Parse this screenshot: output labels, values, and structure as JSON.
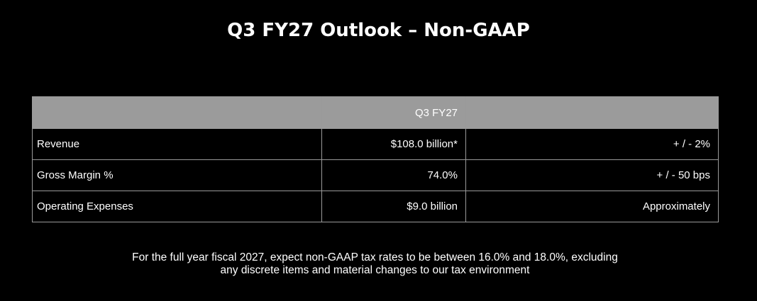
{
  "title": "Q3 FY27 Outlook – Non-GAAP",
  "table": {
    "header": [
      "",
      "Q3 FY27",
      ""
    ],
    "rows": [
      {
        "label": "Revenue",
        "value": "$108.0 billion*",
        "range": "+ / - 2%"
      },
      {
        "label": "Gross Margin %",
        "value": "74.0%",
        "range": "+ / - 50 bps"
      },
      {
        "label": "Operating Expenses",
        "value": "$9.0 billion",
        "range": "Approximately"
      }
    ]
  },
  "footnote": {
    "line1": "For the full year fiscal 2027, expect non-GAAP tax rates to be between 16.0% and 18.0%, excluding",
    "line2": "any discrete items and material changes to our tax environment"
  },
  "colors": {
    "background": "#000000",
    "header_fill": "#9b9b9b",
    "border": "#9a9a9a",
    "text": "#ffffff"
  }
}
